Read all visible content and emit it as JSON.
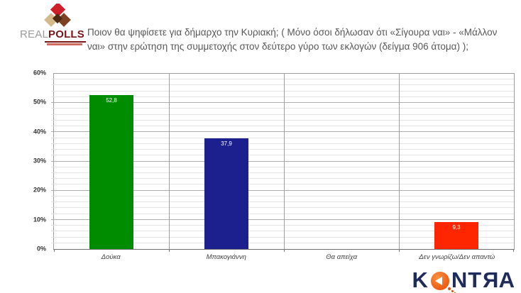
{
  "header": {
    "logo": {
      "word1": "REAL",
      "word2": "POLLS"
    },
    "title": "Ποιον θα ψηφίσετε για δήμαρχο την Κυριακή; ( Μόνο όσοι δήλωσαν ότι «Σίγουρα ναι» - «Μάλλον ναι» στην ερώτηση της συμμετοχής στον δεύτερο γύρο των εκλογών (δείγμα 906 άτομα) );"
  },
  "chart_data": {
    "type": "bar",
    "title": "Ποιον θα ψηφίσετε για δήμαρχο την Κυριακή; ( Μόνο όσοι δήλωσαν ότι «Σίγουρα ναι» - «Μάλλον ναι» στην ερώτηση της συμμετοχής στον δεύτερο γύρο των εκλογών (δείγμα 906 άτομα) );",
    "categories": [
      "Δούκα",
      "Μπακογιάννη",
      "Θα απείχα",
      "Δεν γνωρίζω/Δεν απαντώ"
    ],
    "values": [
      52.8,
      37.9,
      0,
      9.3
    ],
    "value_labels": [
      "52,8",
      "37,9",
      "",
      "9,3"
    ],
    "bar_colors": [
      "#008c00",
      "#1c208f",
      "#808080",
      "#fe2600"
    ],
    "xlabel": "",
    "ylabel": "",
    "ylim": [
      0,
      60
    ],
    "ytick_major_step": 10,
    "ytick_minor_step": 2,
    "ytick_labels": [
      "0%",
      "10%",
      "20%",
      "30%",
      "40%",
      "50%",
      "60%"
    ],
    "grid": true,
    "legend": false
  },
  "footer": {
    "kontra": {
      "part1": "K",
      "part2": "NT",
      "mirrored_letter": "R",
      "part3": "A"
    }
  }
}
